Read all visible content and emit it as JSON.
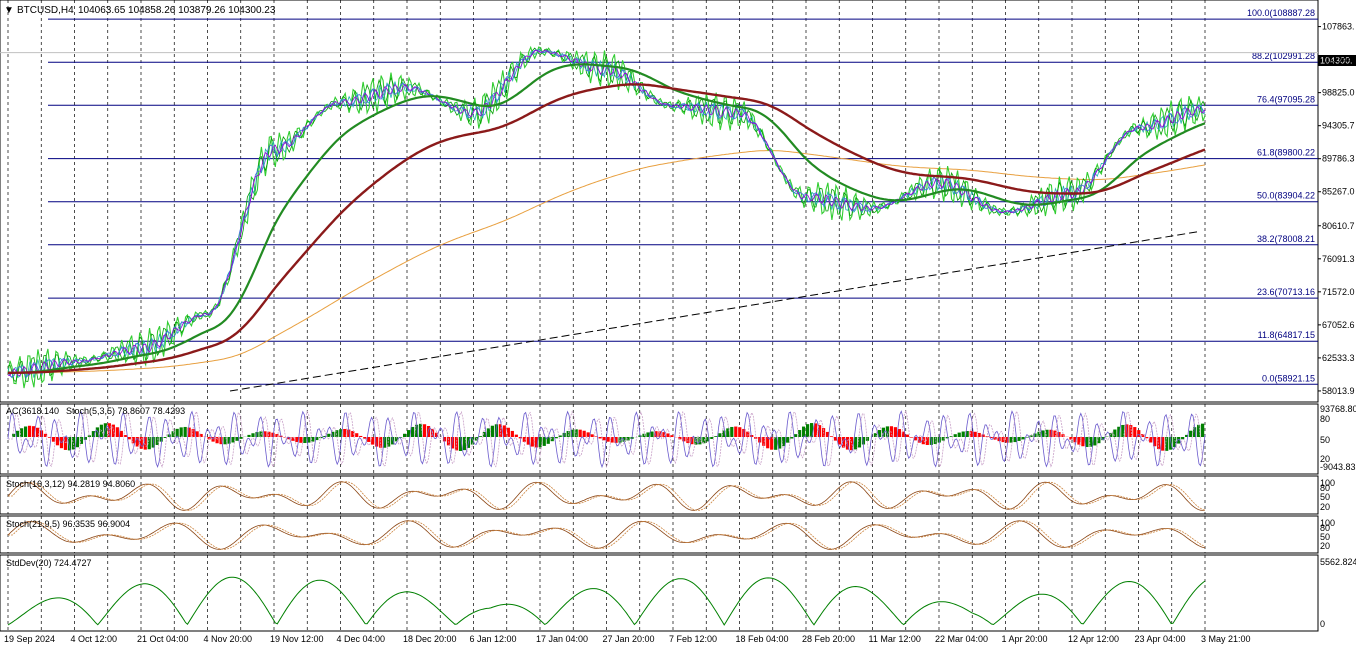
{
  "header": {
    "symbol": "BTCUSD,H4",
    "ohlc": "104063.65 104858.26 103879.26 104300.23"
  },
  "price_axis": {
    "ticks": [
      "107863.",
      "103344.",
      "98825.0",
      "94305.7",
      "89786.3",
      "85267.0",
      "80610.7",
      "76091.3",
      "71572.0",
      "67052.6",
      "62533.3",
      "58013.9"
    ],
    "current_price": "104300."
  },
  "fibonacci": [
    {
      "label": "100.0(108887.28"
    },
    {
      "label": "88.2(102991.28"
    },
    {
      "label": "76.4(97095.28"
    },
    {
      "label": "61.8(89800.22"
    },
    {
      "label": "50.0(83904.22"
    },
    {
      "label": "38.2(78008.21"
    },
    {
      "label": "23.6(70713.16"
    },
    {
      "label": "11.8(64817.15"
    },
    {
      "label": "0.0(58921.15"
    }
  ],
  "time_axis": [
    "19 Sep 2024",
    "4 Oct 12:00",
    "21 Oct 04:00",
    "4 Nov 20:00",
    "19 Nov 12:00",
    "4 Dec 04:00",
    "18 Dec 20:00",
    "6 Jan 12:00",
    "17 Jan 04:00",
    "27 Jan 20:00",
    "7 Feb 12:00",
    "18 Feb 04:00",
    "28 Feb 20:00",
    "11 Mar 12:00",
    "22 Mar 04:00",
    "1 Apr 20:00",
    "12 Apr 12:00",
    "23 Apr 04:00",
    "3 May 21:00"
  ],
  "indicators": {
    "ac_label": "AC(3618.140",
    "stoch1_label": "Stoch(5,3,5) 78.8607 78.4293",
    "ac_axis": [
      "93768.80",
      "80",
      "50",
      "20",
      "-9043.83"
    ],
    "stoch2_label": "Stoch(16,3,12) 94.2819 94.8060",
    "stoch2_axis": [
      "100",
      "80",
      "50",
      "20"
    ],
    "stoch3_label": "Stoch(21,9,5) 96.3535 96.9004",
    "stoch3_axis": [
      "100",
      "80",
      "50",
      "20"
    ],
    "stddev_label": "StdDev(20) 724.4727",
    "stddev_axis": [
      "5562.824",
      "0"
    ]
  },
  "colors": {
    "fib": "#000080",
    "ma_long": "#8b1a1a",
    "ma_mid": "#228b22",
    "ma_slow": "#e8a040",
    "price": "#32cd32",
    "ac_up": "#008000",
    "ac_down": "#ff0000",
    "stoch_main": "#8b4513",
    "stddev": "#008000"
  },
  "chart_data": {
    "type": "line",
    "title": "BTCUSD,H4",
    "ylim": [
      58013.9,
      110000
    ],
    "x": [
      "19 Sep 2024",
      "4 Oct 12:00",
      "21 Oct 04:00",
      "4 Nov 20:00",
      "19 Nov 12:00",
      "4 Dec 04:00",
      "18 Dec 20:00",
      "6 Jan 12:00",
      "17 Jan 04:00",
      "27 Jan 20:00",
      "7 Feb 12:00",
      "18 Feb 04:00",
      "28 Feb 20:00",
      "11 Mar 12:00",
      "22 Mar 04:00",
      "1 Apr 20:00",
      "12 Apr 12:00",
      "23 Apr 04:00",
      "3 May 21:00"
    ],
    "series": [
      {
        "values": [
          60500,
          62000,
          63800,
          68500,
          91000,
          97500,
          99500,
          96000,
          104500,
          102000,
          97000,
          96000,
          84500,
          83000,
          86500,
          82500,
          85000,
          94000,
          96500
        ]
      }
    ],
    "fib_levels": [
      108887.28,
      102991.28,
      97095.28,
      89800.22,
      83904.22,
      78008.21,
      70713.16,
      64817.15,
      58921.15
    ],
    "current_price": 104300.23
  }
}
